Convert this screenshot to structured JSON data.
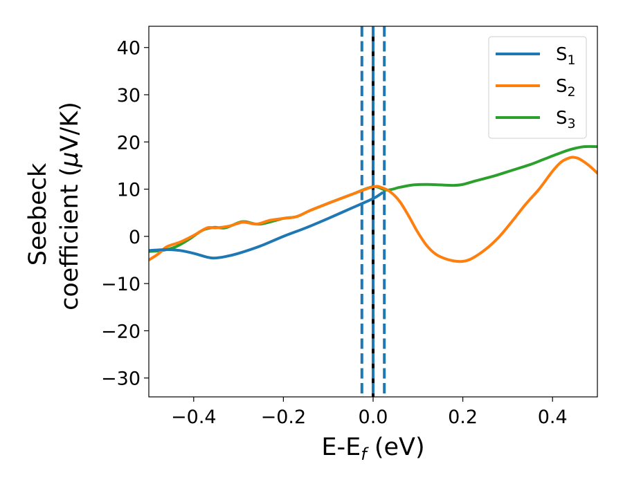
{
  "chart_data": {
    "type": "line",
    "xlabel": {
      "main": "E-E",
      "sub": "f",
      "unit": " (eV)"
    },
    "ylabel": {
      "line1": "Seebeck",
      "line2": "coefficient  (",
      "mu": "μ",
      "unit": "V/K)"
    },
    "xlim": [
      -0.5,
      0.5
    ],
    "ylim": [
      -34,
      44.5
    ],
    "xticks": [
      -0.4,
      -0.2,
      0.0,
      0.2,
      0.4
    ],
    "xtick_labels": [
      "−0.4",
      "−0.2",
      "0.0",
      "0.2",
      "0.4"
    ],
    "yticks": [
      -30,
      -20,
      -10,
      0,
      10,
      20,
      30,
      40
    ],
    "ytick_labels": [
      "−30",
      "−20",
      "−10",
      "0",
      "10",
      "20",
      "30",
      "40"
    ],
    "grid": false,
    "legend_position": "top-right",
    "vertical_lines": [
      {
        "x": -0.025,
        "style": "dashed",
        "color": "#1f77b4"
      },
      {
        "x": 0.0,
        "style": "solid",
        "color": "#000000"
      },
      {
        "x": 0.0,
        "style": "dashed",
        "color": "#1f77b4"
      },
      {
        "x": 0.025,
        "style": "dashed",
        "color": "#1f77b4"
      }
    ],
    "series": [
      {
        "name": "S1",
        "label_main": "S",
        "label_sub": "1",
        "color": "#1f77b4",
        "x": [
          -0.5,
          -0.46,
          -0.43,
          -0.4,
          -0.37,
          -0.355,
          -0.33,
          -0.3,
          -0.25,
          -0.2,
          -0.15,
          -0.1,
          -0.05,
          0.0,
          0.02
        ],
        "y": [
          -3.0,
          -2.8,
          -3.0,
          -3.6,
          -4.4,
          -4.6,
          -4.3,
          -3.6,
          -2.0,
          0.0,
          1.8,
          3.8,
          5.9,
          8.0,
          9.2
        ]
      },
      {
        "name": "S2",
        "label_main": "S",
        "label_sub": "2",
        "color": "#ff7f0e",
        "x": [
          -0.5,
          -0.48,
          -0.46,
          -0.43,
          -0.4,
          -0.37,
          -0.35,
          -0.32,
          -0.29,
          -0.26,
          -0.23,
          -0.2,
          -0.17,
          -0.14,
          -0.1,
          -0.05,
          0.0,
          0.02,
          0.04,
          0.06,
          0.08,
          0.1,
          0.12,
          0.14,
          0.16,
          0.18,
          0.2,
          0.22,
          0.25,
          0.28,
          0.31,
          0.34,
          0.37,
          0.4,
          0.42,
          0.44,
          0.45,
          0.46,
          0.48,
          0.5
        ],
        "y": [
          -5.0,
          -3.8,
          -2.2,
          -1.2,
          0.2,
          1.8,
          1.8,
          2.2,
          3.0,
          2.6,
          3.4,
          3.8,
          4.2,
          5.5,
          7.0,
          8.8,
          10.5,
          10.3,
          9.3,
          7.3,
          4.2,
          0.8,
          -2.0,
          -3.8,
          -4.7,
          -5.2,
          -5.3,
          -4.7,
          -2.8,
          -0.2,
          3.2,
          6.8,
          10.0,
          13.8,
          15.8,
          16.7,
          16.7,
          16.4,
          15.1,
          13.4
        ]
      },
      {
        "name": "S3",
        "label_main": "S",
        "label_sub": "3",
        "color": "#2ca02c",
        "x": [
          -0.5,
          -0.47,
          -0.44,
          -0.41,
          -0.38,
          -0.355,
          -0.33,
          -0.3,
          -0.285,
          -0.26,
          -0.24,
          -0.2,
          -0.17,
          -0.14,
          -0.1,
          -0.05,
          0.0,
          0.03,
          0.06,
          0.09,
          0.12,
          0.15,
          0.18,
          0.2,
          0.23,
          0.27,
          0.31,
          0.35,
          0.38,
          0.41,
          0.44,
          0.47,
          0.5
        ],
        "y": [
          -3.2,
          -3.0,
          -2.2,
          -0.6,
          1.3,
          1.9,
          1.8,
          2.9,
          3.1,
          2.6,
          2.8,
          3.8,
          4.2,
          5.5,
          7.0,
          8.8,
          10.5,
          9.8,
          10.4,
          10.9,
          11.0,
          10.9,
          10.8,
          11.0,
          11.8,
          12.8,
          14.0,
          15.2,
          16.3,
          17.4,
          18.4,
          19.0,
          19.0
        ]
      }
    ]
  }
}
